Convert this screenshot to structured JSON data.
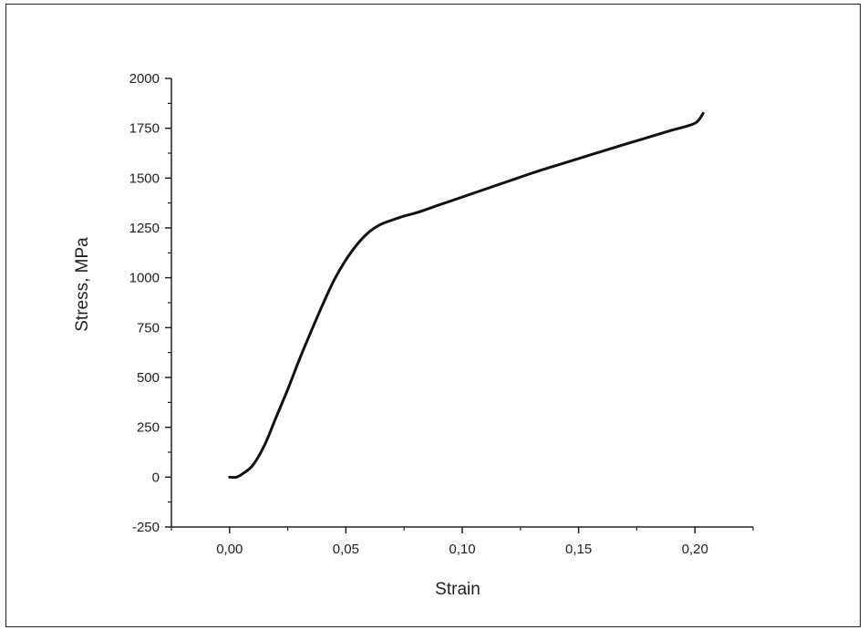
{
  "chart_data": {
    "type": "line",
    "title": "",
    "xlabel": "Strain",
    "ylabel": "Stress, MPa",
    "xlim": [
      -0.025,
      0.225
    ],
    "ylim": [
      -250,
      2000
    ],
    "x_ticks": [
      0.0,
      0.05,
      0.1,
      0.15,
      0.2
    ],
    "x_tick_labels": [
      "0,00",
      "0,05",
      "0,10",
      "0,15",
      "0,20"
    ],
    "y_ticks": [
      -250,
      0,
      250,
      500,
      750,
      1000,
      1250,
      1500,
      1750,
      2000
    ],
    "y_tick_labels": [
      "-250",
      "0",
      "250",
      "500",
      "750",
      "1000",
      "1250",
      "1500",
      "1750",
      "2000"
    ],
    "grid": false,
    "line_color": "#111111",
    "series": [
      {
        "x": [
          0.0,
          0.003,
          0.006,
          0.01,
          0.015,
          0.02,
          0.025,
          0.03,
          0.035,
          0.04,
          0.045,
          0.05,
          0.055,
          0.06,
          0.065,
          0.07,
          0.075,
          0.08,
          0.09,
          0.1,
          0.11,
          0.12,
          0.13,
          0.14,
          0.15,
          0.16,
          0.17,
          0.18,
          0.19,
          0.2,
          0.2035
        ],
        "y": [
          0,
          0,
          20,
          60,
          160,
          300,
          440,
          590,
          730,
          865,
          990,
          1090,
          1170,
          1230,
          1268,
          1290,
          1310,
          1325,
          1365,
          1405,
          1445,
          1485,
          1525,
          1562,
          1598,
          1634,
          1670,
          1705,
          1740,
          1775,
          1825
        ]
      }
    ]
  }
}
